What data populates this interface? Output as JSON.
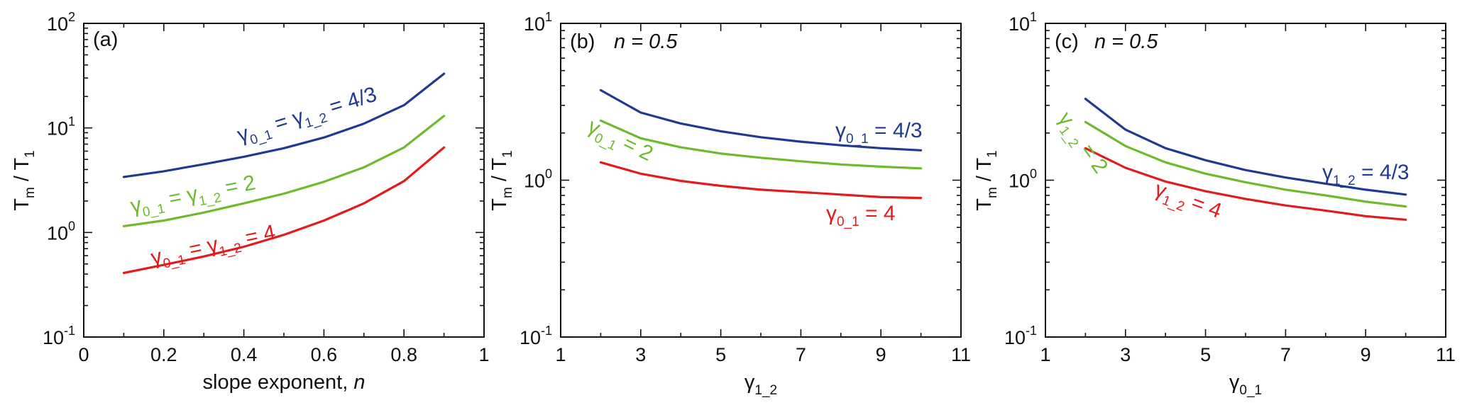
{
  "colors": {
    "blue": "#1f3a93",
    "green": "#6dbb2c",
    "red": "#e21b1b"
  },
  "chart_data": [
    {
      "type": "line",
      "panel_label": "(a)",
      "annotation": "",
      "xlabel_main": "slope exponent, ",
      "xlabel_italic": "n",
      "ylabel_main": "T",
      "ylabel_sub1": "m",
      "ylabel_mid": " / T",
      "ylabel_sub2": "1",
      "xlim": [
        0,
        1
      ],
      "ylim": [
        0.1,
        100
      ],
      "yscale": "log",
      "xticks": [
        0,
        0.2,
        0.4,
        0.6,
        0.8,
        1
      ],
      "xtick_labels": [
        "0",
        "0.2",
        "0.4",
        "0.6",
        "0.8",
        "1"
      ],
      "yticks": [
        0.1,
        1,
        10,
        100
      ],
      "ytick_bases": [
        "10",
        "10",
        "10",
        "10"
      ],
      "ytick_exps": [
        "-1",
        "0",
        "1",
        "2"
      ],
      "x": [
        0.1,
        0.2,
        0.3,
        0.4,
        0.5,
        0.6,
        0.7,
        0.8,
        0.9
      ],
      "series": [
        {
          "color": "blue",
          "label": "γ0_1 = γ1_2 = 4/3",
          "values": [
            3.4,
            3.85,
            4.5,
            5.3,
            6.4,
            8.1,
            11,
            16.5,
            33
          ]
        },
        {
          "color": "green",
          "label": "γ0_1 = γ1_2 = 2",
          "values": [
            1.15,
            1.3,
            1.55,
            1.9,
            2.35,
            3.05,
            4.2,
            6.5,
            13
          ]
        },
        {
          "color": "red",
          "label": "γ0_1 = γ1_2 = 4",
          "values": [
            0.41,
            0.49,
            0.59,
            0.73,
            0.95,
            1.3,
            1.9,
            3.1,
            6.5
          ]
        }
      ]
    },
    {
      "type": "line",
      "panel_label": "(b)",
      "annotation": "n = 0.5",
      "xlabel_main": "γ",
      "xlabel_sub": "1_2",
      "ylabel_main": "T",
      "ylabel_sub1": "m",
      "ylabel_mid": " / T",
      "ylabel_sub2": "1",
      "xlim": [
        1,
        11
      ],
      "ylim": [
        0.1,
        10
      ],
      "yscale": "log",
      "xticks": [
        1,
        3,
        5,
        7,
        9,
        11
      ],
      "xtick_labels": [
        "1",
        "3",
        "5",
        "7",
        "9",
        "11"
      ],
      "yticks": [
        0.1,
        1,
        10
      ],
      "ytick_bases": [
        "10",
        "10",
        "10"
      ],
      "ytick_exps": [
        "-1",
        "0",
        "1"
      ],
      "x": [
        2,
        3,
        4,
        5,
        6,
        7,
        8,
        9,
        10
      ],
      "series": [
        {
          "color": "blue",
          "label": "γ0_1 = 4/3",
          "values": [
            3.75,
            2.7,
            2.3,
            2.05,
            1.88,
            1.76,
            1.67,
            1.6,
            1.55
          ]
        },
        {
          "color": "green",
          "label": "γ0_1 = 2",
          "values": [
            2.4,
            1.85,
            1.62,
            1.48,
            1.39,
            1.32,
            1.26,
            1.22,
            1.19
          ]
        },
        {
          "color": "red",
          "label": "γ0_1 = 4",
          "values": [
            1.3,
            1.1,
            0.99,
            0.92,
            0.87,
            0.84,
            0.81,
            0.78,
            0.77
          ]
        }
      ]
    },
    {
      "type": "line",
      "panel_label": "(c)",
      "annotation": "n = 0.5",
      "xlabel_main": "γ",
      "xlabel_sub": "0_1",
      "ylabel_main": "T",
      "ylabel_sub1": "m",
      "ylabel_mid": " / T",
      "ylabel_sub2": "1",
      "xlim": [
        1,
        11
      ],
      "ylim": [
        0.1,
        10
      ],
      "yscale": "log",
      "xticks": [
        1,
        3,
        5,
        7,
        9,
        11
      ],
      "xtick_labels": [
        "1",
        "3",
        "5",
        "7",
        "9",
        "11"
      ],
      "yticks": [
        0.1,
        1,
        10
      ],
      "ytick_bases": [
        "10",
        "10",
        "10"
      ],
      "ytick_exps": [
        "-1",
        "0",
        "1"
      ],
      "x": [
        2,
        3,
        4,
        5,
        6,
        7,
        8,
        9,
        10
      ],
      "series": [
        {
          "color": "blue",
          "label": "γ1_2 = 4/3",
          "values": [
            3.3,
            2.1,
            1.6,
            1.34,
            1.16,
            1.04,
            0.95,
            0.87,
            0.81
          ]
        },
        {
          "color": "green",
          "label": "γ1_2 = 2",
          "values": [
            2.35,
            1.65,
            1.3,
            1.1,
            0.97,
            0.87,
            0.8,
            0.73,
            0.68
          ]
        },
        {
          "color": "red",
          "label": "γ1_2 = 4",
          "values": [
            1.6,
            1.2,
            0.98,
            0.85,
            0.76,
            0.69,
            0.64,
            0.59,
            0.56
          ]
        }
      ]
    }
  ]
}
